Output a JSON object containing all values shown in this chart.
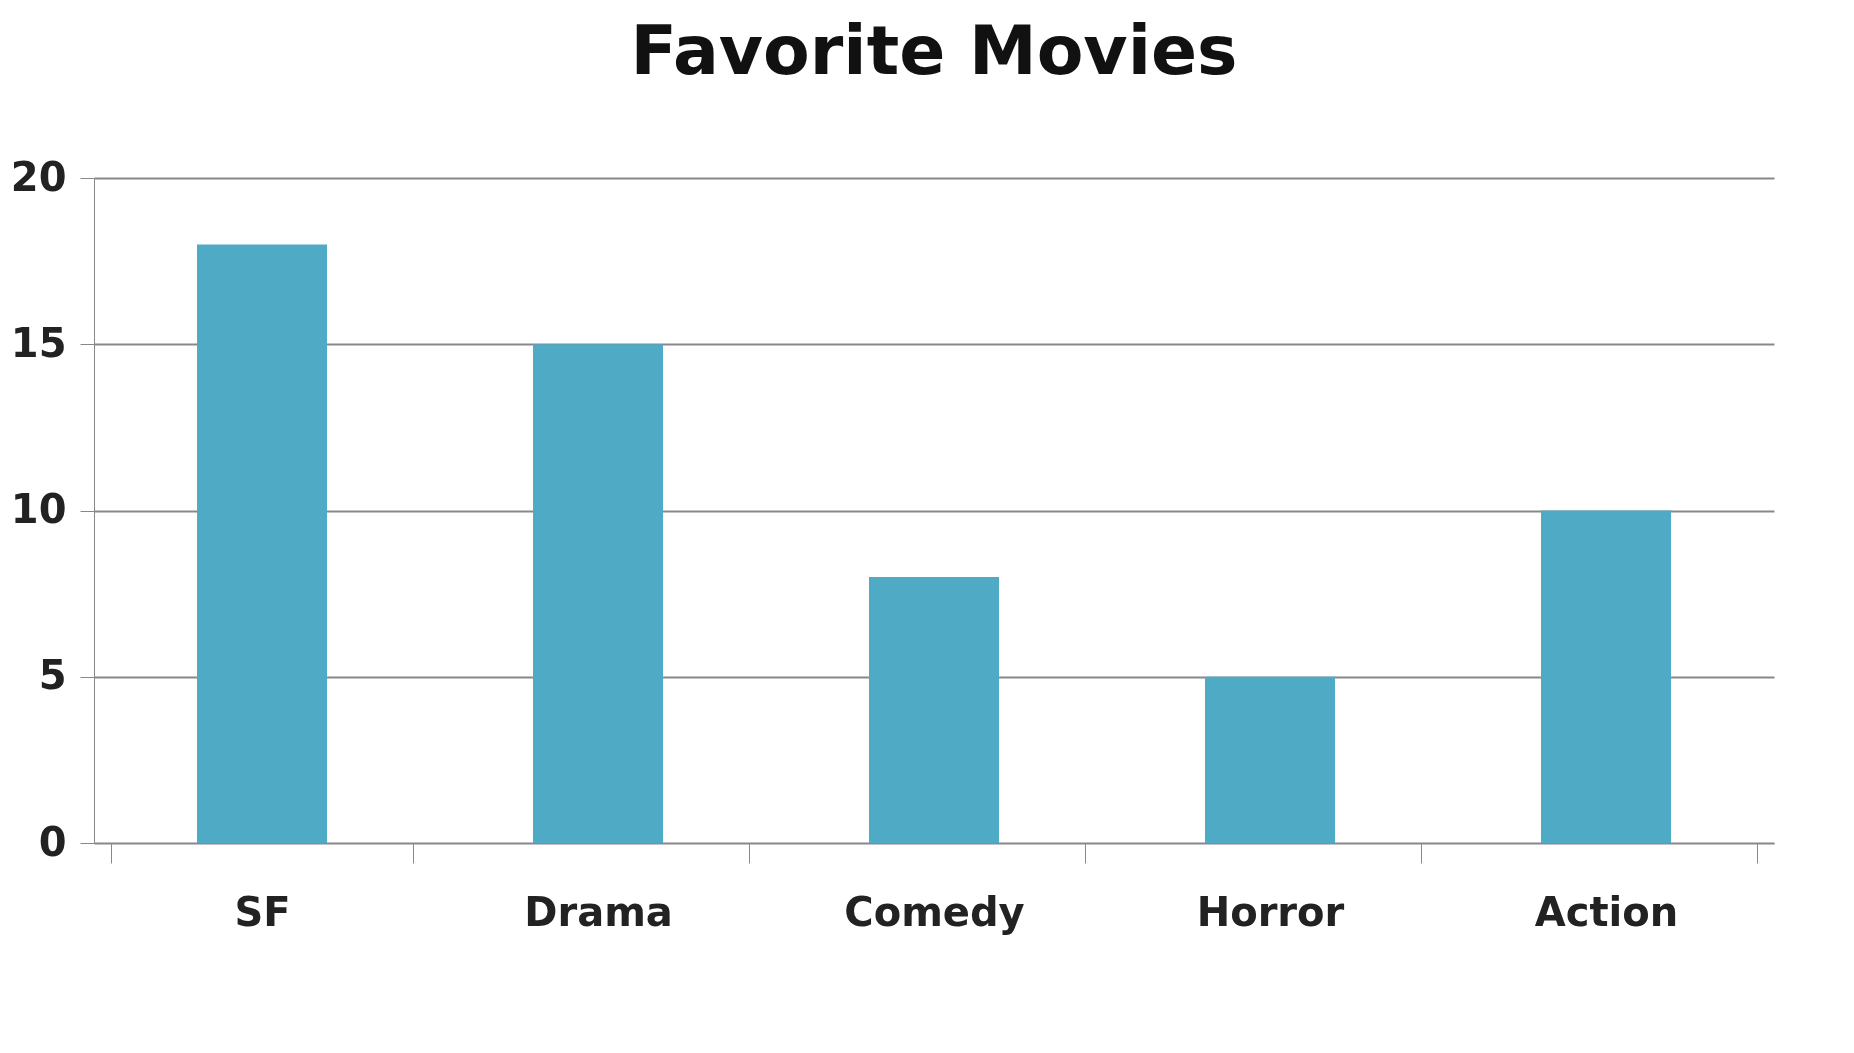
{
  "chart_data": {
    "type": "bar",
    "title": "Favorite Movies",
    "categories": [
      "SF",
      "Drama",
      "Comedy",
      "Horror",
      "Action"
    ],
    "values": [
      18,
      15,
      8,
      5,
      10
    ],
    "color": "#4faac6",
    "ylim": [
      0,
      20
    ],
    "yticks": [
      0,
      5,
      10,
      15,
      20
    ],
    "grid": "y"
  }
}
